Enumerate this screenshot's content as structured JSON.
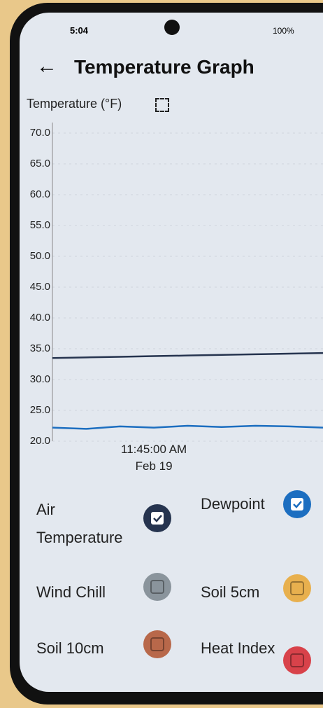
{
  "status_bar": {
    "time": "5:04",
    "battery": "100%"
  },
  "header": {
    "title": "Temperature Graph"
  },
  "chart_data": {
    "type": "line",
    "y_label": "Temperature (°F)",
    "categories": [
      null,
      null,
      null,
      "11:45:00 AM\nFeb 19",
      null,
      null,
      null,
      null,
      null
    ],
    "ylim": [
      20,
      70
    ],
    "yticks": [
      {
        "value": 20,
        "label": "20.0"
      },
      {
        "value": 25,
        "label": "25.0"
      },
      {
        "value": 30,
        "label": "30.0"
      },
      {
        "value": 35,
        "label": "35.0"
      },
      {
        "value": 40,
        "label": "40.0"
      },
      {
        "value": 45,
        "label": "45.0"
      },
      {
        "value": 50,
        "label": "50.0"
      },
      {
        "value": 55,
        "label": "55.0"
      },
      {
        "value": 60,
        "label": "60.0"
      },
      {
        "value": 65,
        "label": "65.0"
      },
      {
        "value": 70,
        "label": "70.0"
      }
    ],
    "grid": true,
    "series": [
      {
        "name": "Air Temperature",
        "color": "#26344f",
        "checked": true,
        "values": [
          33.5,
          33.6,
          33.7,
          33.8,
          33.9,
          34.0,
          34.1,
          34.2,
          34.3
        ]
      },
      {
        "name": "Dewpoint",
        "color": "#1c6ec0",
        "checked": true,
        "values": [
          22.2,
          22.0,
          22.4,
          22.2,
          22.5,
          22.3,
          22.5,
          22.4,
          22.2
        ]
      },
      {
        "name": "Wind Chill",
        "color": "#8a949c",
        "checked": false,
        "values": [
          null,
          null,
          null,
          null,
          null,
          null,
          null,
          null,
          null
        ]
      },
      {
        "name": "Soil 5cm",
        "color": "#e8b04e",
        "checked": false,
        "values": [
          null,
          null,
          null,
          null,
          null,
          null,
          null,
          null,
          null
        ]
      },
      {
        "name": "Soil 10cm",
        "color": "#b8684a",
        "checked": false,
        "values": [
          null,
          null,
          null,
          null,
          null,
          null,
          null,
          null,
          null
        ]
      },
      {
        "name": "Heat Index",
        "color": "#d8424a",
        "checked": false,
        "values": [
          null,
          null,
          null,
          null,
          null,
          null,
          null,
          null,
          null
        ]
      }
    ]
  }
}
